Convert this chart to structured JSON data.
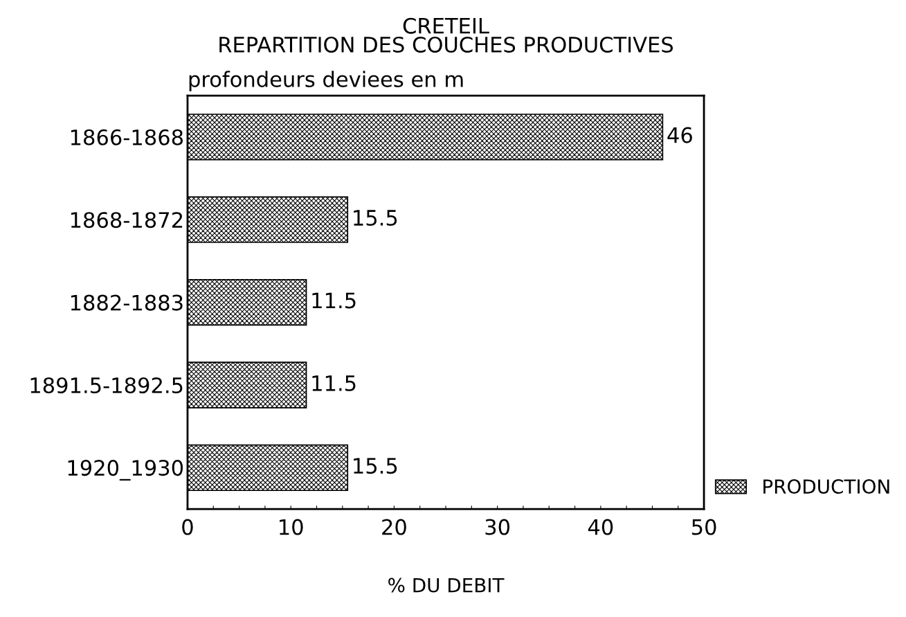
{
  "chart_data": {
    "type": "bar",
    "orientation": "horizontal",
    "title": "CRETEIL\nREPARTITION DES COUCHES PRODUCTIVES",
    "ylabel": "profondeurs deviees en m",
    "xlabel": "% DU DEBIT",
    "categories": [
      "1866-1868",
      "1868-1872",
      "1882-1883",
      "1891.5-1892.5",
      "1920_1930"
    ],
    "series": [
      {
        "name": "PRODUCTION",
        "color": "#000000",
        "values": [
          46,
          15.5,
          11.5,
          11.5,
          15.5
        ]
      }
    ],
    "data_labels": true,
    "xlim": [
      0,
      50
    ],
    "xticks": [
      0,
      {
        "value": 2.5,
        "label": null
      },
      {
        "value": 5,
        "label": null
      },
      {
        "value": 7.5,
        "label": null
      },
      10,
      {
        "value": 12.5,
        "label": null
      },
      {
        "value": 15,
        "label": null
      },
      {
        "value": 17.5,
        "label": null
      },
      20,
      {
        "value": 22.5,
        "label": null
      },
      {
        "value": 25,
        "label": null
      },
      {
        "value": 27.5,
        "label": null
      },
      30,
      {
        "value": 32.5,
        "label": null
      },
      {
        "value": 35,
        "label": null
      },
      {
        "value": 37.5,
        "label": null
      },
      40,
      {
        "value": 42.5,
        "label": null
      },
      {
        "value": 45,
        "label": null
      },
      {
        "value": 47.5,
        "label": null
      },
      50
    ],
    "grid": false,
    "legend": "bottom right"
  }
}
